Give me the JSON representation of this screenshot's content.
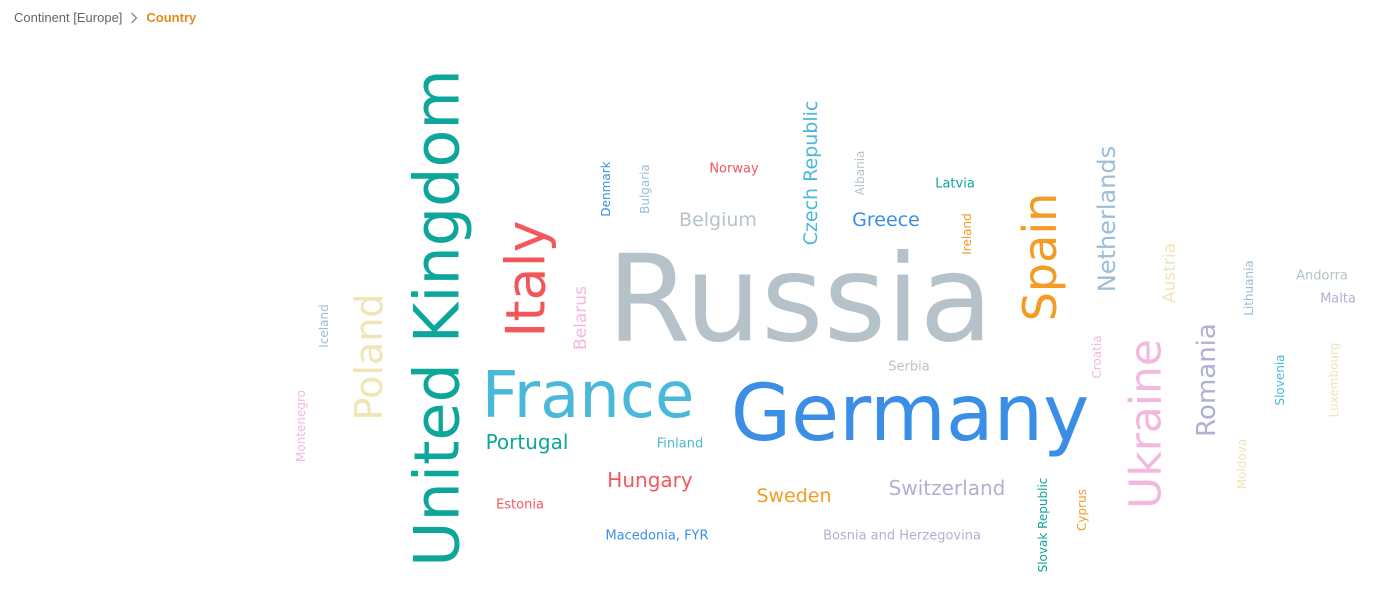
{
  "breadcrumb": {
    "parent_label": "Continent [Europe]",
    "separator_icon": "chevron-right-icon",
    "current_label": "Country"
  },
  "chart_data": {
    "type": "word-cloud",
    "words": [
      {
        "text": "Russia",
        "size": 120,
        "color": "#b6c2c9"
      },
      {
        "text": "Germany",
        "size": 78,
        "color": "#3a8ee6"
      },
      {
        "text": "United Kingdom",
        "size": 62,
        "color": "#0ea69a"
      },
      {
        "text": "France",
        "size": 64,
        "color": "#4ab8d8"
      },
      {
        "text": "Italy",
        "size": 54,
        "color": "#f2585b"
      },
      {
        "text": "Spain",
        "size": 46,
        "color": "#f59a23"
      },
      {
        "text": "Ukraine",
        "size": 44,
        "color": "#f2b8dd"
      },
      {
        "text": "Poland",
        "size": 38,
        "color": "#eee6b4"
      },
      {
        "text": "Netherlands",
        "size": 24,
        "color": "#9bbdd8"
      },
      {
        "text": "Romania",
        "size": 26,
        "color": "#b0b0d4"
      },
      {
        "text": "Czech Republic",
        "size": 19,
        "color": "#4ab8d8"
      },
      {
        "text": "Hungary",
        "size": 20,
        "color": "#f2585b"
      },
      {
        "text": "Portugal",
        "size": 20,
        "color": "#0ea69a"
      },
      {
        "text": "Switzerland",
        "size": 20,
        "color": "#b0b0d4"
      },
      {
        "text": "Belgium",
        "size": 19,
        "color": "#b6c2c9"
      },
      {
        "text": "Greece",
        "size": 19,
        "color": "#3a8ee6"
      },
      {
        "text": "Sweden",
        "size": 19,
        "color": "#f59a23"
      },
      {
        "text": "Belarus",
        "size": 17,
        "color": "#f2b8dd"
      },
      {
        "text": "Austria",
        "size": 17,
        "color": "#eee6b4"
      },
      {
        "text": "Finland",
        "size": 13,
        "color": "#4ab8d8"
      },
      {
        "text": "Serbia",
        "size": 13,
        "color": "#b6c2c9"
      },
      {
        "text": "Norway",
        "size": 13,
        "color": "#f2585b"
      },
      {
        "text": "Latvia",
        "size": 13,
        "color": "#0ea69a"
      },
      {
        "text": "Estonia",
        "size": 13,
        "color": "#f2585b"
      },
      {
        "text": "Macedonia, FYR",
        "size": 13,
        "color": "#3a8ee6"
      },
      {
        "text": "Bosnia and Herzegovina",
        "size": 13,
        "color": "#b0b0d4"
      },
      {
        "text": "Andorra",
        "size": 13,
        "color": "#b6c2c9"
      },
      {
        "text": "Malta",
        "size": 13,
        "color": "#b0b0d4"
      },
      {
        "text": "Denmark",
        "size": 12,
        "color": "#3a8ee6"
      },
      {
        "text": "Bulgaria",
        "size": 12,
        "color": "#9bbdd8"
      },
      {
        "text": "Albania",
        "size": 12,
        "color": "#b6c2c9"
      },
      {
        "text": "Ireland",
        "size": 12,
        "color": "#f59a23"
      },
      {
        "text": "Iceland",
        "size": 12,
        "color": "#9bbdd8"
      },
      {
        "text": "Montenegro",
        "size": 12,
        "color": "#f2b8dd"
      },
      {
        "text": "Croatia",
        "size": 12,
        "color": "#f2b8dd"
      },
      {
        "text": "Cyprus",
        "size": 12,
        "color": "#f59a23"
      },
      {
        "text": "Slovak Republic",
        "size": 12,
        "color": "#0ea69a"
      },
      {
        "text": "Lithuania",
        "size": 12,
        "color": "#9bbdd8"
      },
      {
        "text": "Slovenia",
        "size": 12,
        "color": "#4ab8d8"
      },
      {
        "text": "Moldova",
        "size": 12,
        "color": "#eee6b4"
      },
      {
        "text": "Luxembourg",
        "size": 12,
        "color": "#eee6b4"
      }
    ]
  }
}
